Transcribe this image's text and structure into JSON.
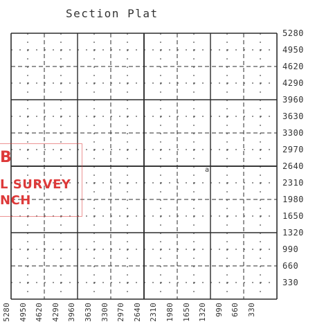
{
  "title": "Section Plat",
  "right_scale": [
    "5280",
    "4950",
    "4620",
    "4290",
    "3960",
    "3630",
    "3300",
    "2970",
    "2640",
    "2310",
    "1980",
    "1650",
    "1320",
    "990",
    "660",
    "330"
  ],
  "bottom_scale": [
    "5280",
    "4950",
    "4620",
    "4290",
    "3960",
    "3630",
    "3300",
    "2970",
    "2640",
    "2310",
    "1980",
    "1650",
    "1320",
    "990",
    "660",
    "330"
  ],
  "stamp": {
    "line1": "B",
    "line2": "L SURVEY",
    "line3": "NCH",
    "color": "#dd3a3a"
  },
  "mark": "a"
}
